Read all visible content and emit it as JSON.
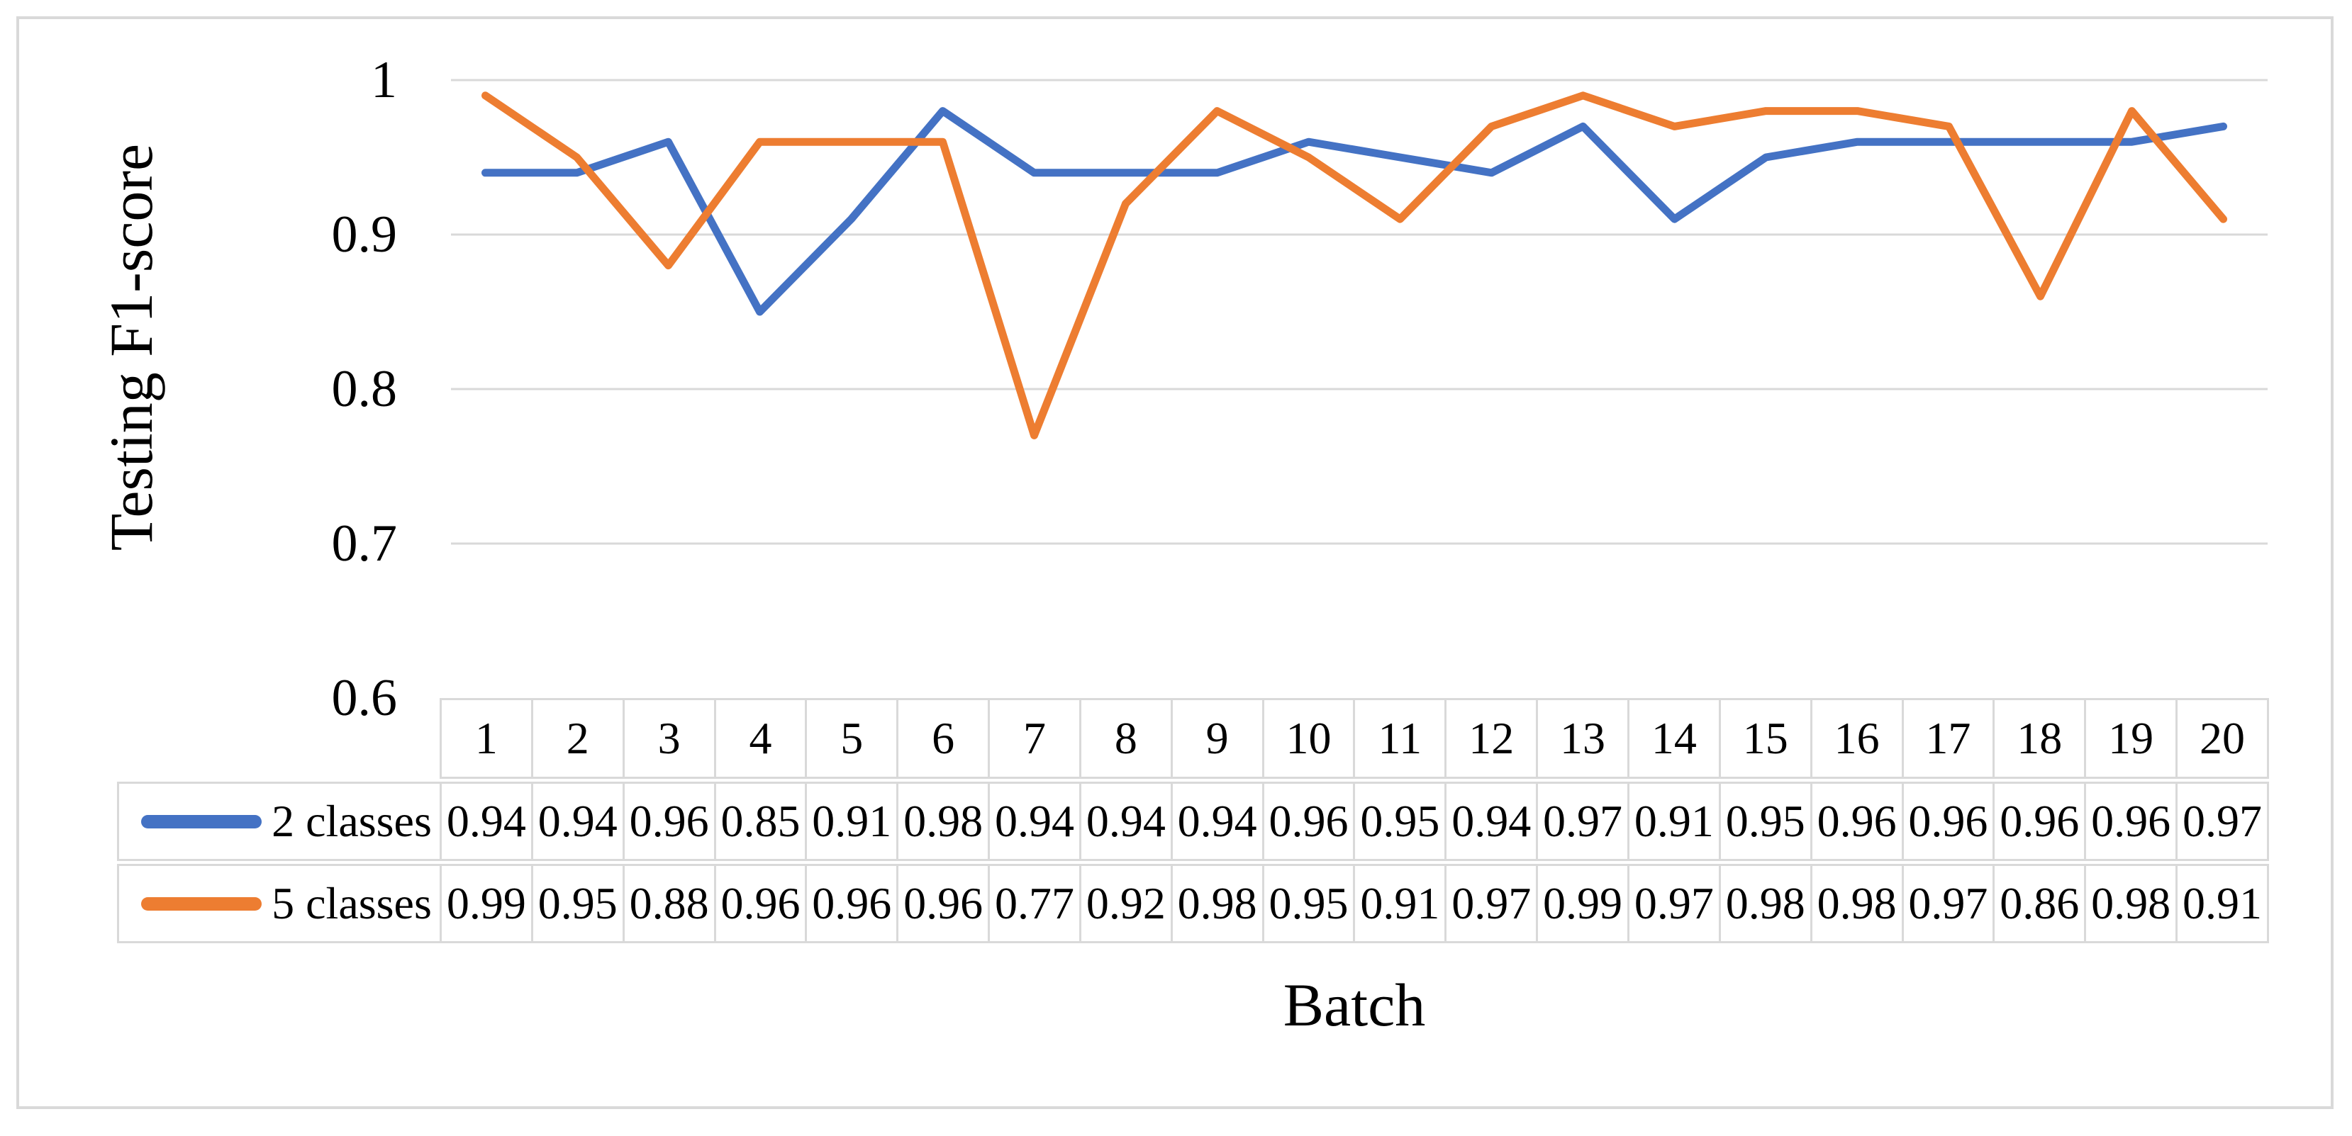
{
  "chart_data": {
    "type": "line",
    "title": "",
    "xlabel": "Batch",
    "ylabel": "Testing F1-score",
    "ylim": [
      0.6,
      1.0
    ],
    "grid": "horizontal",
    "legend_position": "table-left",
    "value_format": "2dp",
    "y_ticks": [
      {
        "value": 1.0,
        "label": "1"
      },
      {
        "value": 0.9,
        "label": "0.9"
      },
      {
        "value": 0.8,
        "label": "0.8"
      },
      {
        "value": 0.7,
        "label": "0.7"
      },
      {
        "value": 0.6,
        "label": "0.6"
      }
    ],
    "categories": [
      "1",
      "2",
      "3",
      "4",
      "5",
      "6",
      "7",
      "8",
      "9",
      "10",
      "11",
      "12",
      "13",
      "14",
      "15",
      "16",
      "17",
      "18",
      "19",
      "20"
    ],
    "series": [
      {
        "name": "2 classes",
        "color": "#4472C4",
        "values": [
          0.94,
          0.94,
          0.96,
          0.85,
          0.91,
          0.98,
          0.94,
          0.94,
          0.94,
          0.96,
          0.95,
          0.94,
          0.97,
          0.91,
          0.95,
          0.96,
          0.96,
          0.96,
          0.96,
          0.97
        ]
      },
      {
        "name": "5 classes",
        "color": "#ED7D31",
        "values": [
          0.99,
          0.95,
          0.88,
          0.96,
          0.96,
          0.96,
          0.77,
          0.92,
          0.98,
          0.95,
          0.91,
          0.97,
          0.99,
          0.97,
          0.98,
          0.98,
          0.97,
          0.86,
          0.98,
          0.91
        ]
      }
    ]
  },
  "colors": {
    "gridline": "#d9d9d9",
    "table_border": "#d9d9d9",
    "frame_border": "#d9d9d9",
    "text": "#000000",
    "background": "#ffffff"
  }
}
